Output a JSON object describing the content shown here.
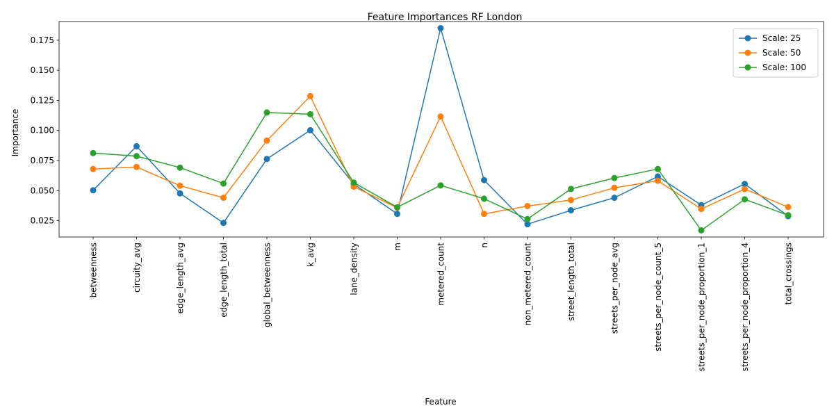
{
  "chart_data": {
    "type": "line",
    "title": "Feature Importances RF London",
    "xlabel": "Feature",
    "ylabel": "Importance",
    "categories": [
      "betweenness",
      "circuity_avg",
      "edge_length_avg",
      "edge_length_total",
      "global_betweenness",
      "k_avg",
      "lane_density",
      "m",
      "metered_count",
      "n",
      "non_metered_count",
      "street_length_total",
      "streets_per_node_avg",
      "streets_per_node_count_5",
      "streets_per_node_proportion_1",
      "streets_per_node_proportion_4",
      "total_crossings"
    ],
    "ylim": [
      0.0115,
      0.1905
    ],
    "yticks": [
      "0.025",
      "0.050",
      "0.075",
      "0.100",
      "0.125",
      "0.150",
      "0.175"
    ],
    "legend_position": "upper right",
    "grid": false,
    "series": [
      {
        "name": "Scale: 25",
        "color": "#1f77b4",
        "values": [
          0.0503,
          0.0869,
          0.0477,
          0.0232,
          0.0763,
          0.1002,
          0.0555,
          0.0307,
          0.185,
          0.0588,
          0.0221,
          0.0337,
          0.0441,
          0.0618,
          0.038,
          0.0556,
          0.0288
        ]
      },
      {
        "name": "Scale: 50",
        "color": "#ff7f0e",
        "values": [
          0.068,
          0.0697,
          0.0541,
          0.0441,
          0.0916,
          0.1285,
          0.0533,
          0.0358,
          0.1116,
          0.0307,
          0.0372,
          0.0422,
          0.0524,
          0.0582,
          0.0348,
          0.0513,
          0.0364
        ]
      },
      {
        "name": "Scale: 100",
        "color": "#2ca02c",
        "values": [
          0.0812,
          0.0787,
          0.0691,
          0.0559,
          0.1149,
          0.1135,
          0.0567,
          0.0362,
          0.0544,
          0.0433,
          0.0264,
          0.0514,
          0.0605,
          0.068,
          0.017,
          0.0428,
          0.0296
        ]
      }
    ]
  }
}
